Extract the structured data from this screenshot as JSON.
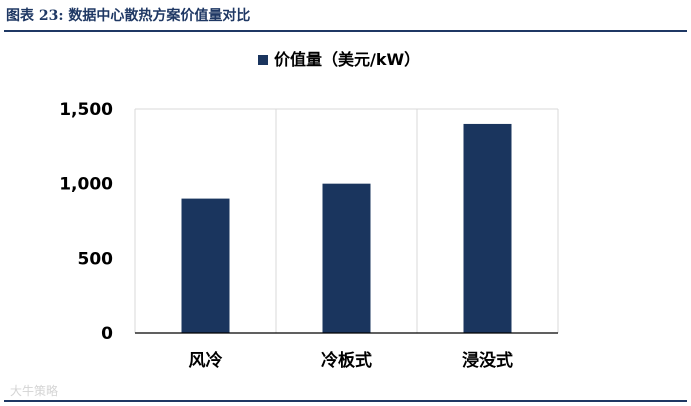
{
  "figure_caption": "图表 23: 数据中心散热方案价值量对比",
  "watermark": "大牛策略",
  "chart_data": {
    "type": "bar",
    "title": "",
    "categories": [
      "风冷",
      "冷板式",
      "浸没式"
    ],
    "series": [
      {
        "name": "价值量（美元/kW）",
        "values": [
          900,
          1000,
          1400
        ]
      }
    ],
    "ylim": [
      0,
      1500
    ],
    "yticks": [
      0,
      500,
      1000,
      1500
    ],
    "ytick_labels": [
      "0",
      "500",
      "1,000",
      "1,500"
    ],
    "xlabel": "",
    "ylabel": "",
    "legend_position": "top",
    "grid": "vertical-category-separators",
    "colors": {
      "bar": "#1a355e",
      "grid": "#d9d9d9",
      "axis": "#000000",
      "text": "#000000"
    }
  }
}
